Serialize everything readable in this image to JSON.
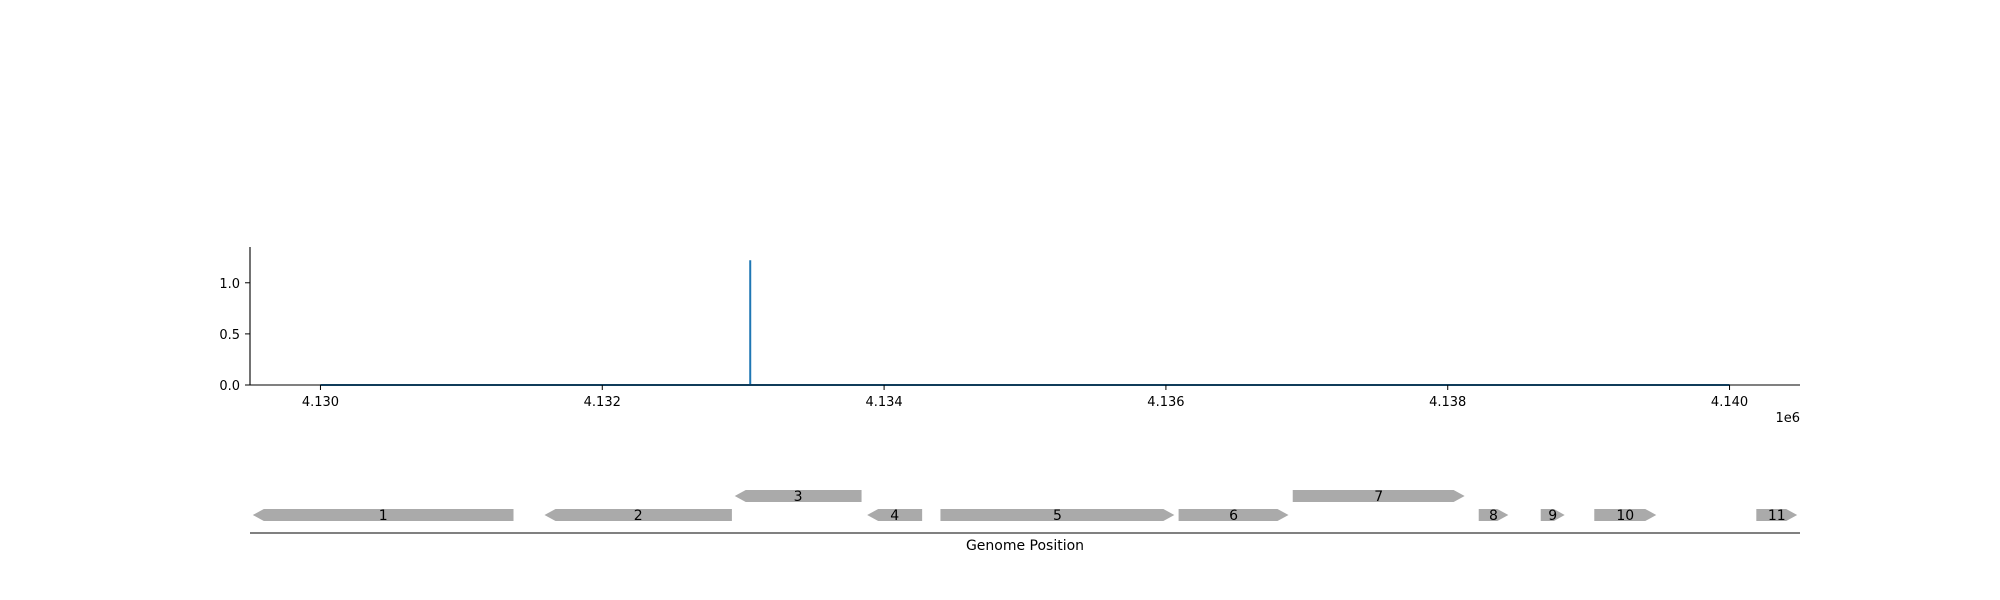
{
  "chart_data": [
    {
      "type": "line",
      "title": "",
      "xlabel": "",
      "ylabel": "",
      "x_offset_label": "1e6",
      "xlim": [
        4129500,
        4140500
      ],
      "ylim": [
        0,
        1.35
      ],
      "x_ticks": [
        4130000,
        4132000,
        4134000,
        4136000,
        4138000,
        4140000
      ],
      "x_tick_labels": [
        "4.130",
        "4.132",
        "4.134",
        "4.136",
        "4.138",
        "4.140"
      ],
      "y_ticks": [
        0.0,
        0.5,
        1.0
      ],
      "y_tick_labels": [
        "0.0",
        "0.5",
        "1.0"
      ],
      "grid": false,
      "series": [
        {
          "color": "#1f77b4",
          "x": [
            4130000,
            4133050,
            4133050,
            4133050,
            4140000
          ],
          "y": [
            0,
            0,
            1.22,
            0,
            0
          ]
        }
      ]
    },
    {
      "type": "gene_track",
      "xlabel": "Genome Position",
      "xlim": [
        4129500,
        4140500
      ],
      "feature_color": "#aaaaaa",
      "features": [
        {
          "label": "1",
          "start": 4129520,
          "end": 4131370,
          "strand": -1,
          "row": 0
        },
        {
          "label": "2",
          "start": 4131590,
          "end": 4132920,
          "strand": -1,
          "row": 0
        },
        {
          "label": "3",
          "start": 4132940,
          "end": 4133840,
          "strand": -1,
          "row": 1
        },
        {
          "label": "4",
          "start": 4133880,
          "end": 4134270,
          "strand": -1,
          "row": 0
        },
        {
          "label": "5",
          "start": 4134400,
          "end": 4136060,
          "strand": 1,
          "row": 0
        },
        {
          "label": "6",
          "start": 4136090,
          "end": 4136870,
          "strand": 1,
          "row": 0
        },
        {
          "label": "7",
          "start": 4136900,
          "end": 4138120,
          "strand": 1,
          "row": 1
        },
        {
          "label": "8",
          "start": 4138220,
          "end": 4138430,
          "strand": 1,
          "row": 0
        },
        {
          "label": "9",
          "start": 4138660,
          "end": 4138830,
          "strand": 1,
          "row": 0
        },
        {
          "label": "10",
          "start": 4139040,
          "end": 4139480,
          "strand": 1,
          "row": 0
        },
        {
          "label": "11",
          "start": 4140190,
          "end": 4140480,
          "strand": 1,
          "row": 0
        }
      ]
    }
  ]
}
